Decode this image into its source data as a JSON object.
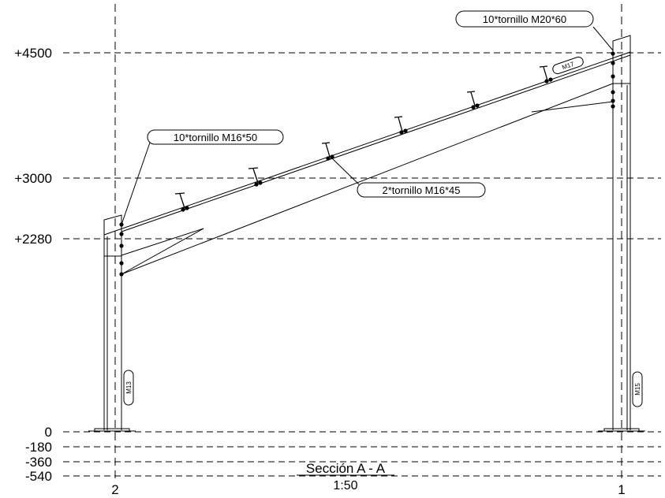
{
  "levels": [
    {
      "id": "l4500",
      "label": "+4500"
    },
    {
      "id": "l3000",
      "label": "+3000"
    },
    {
      "id": "l2280",
      "label": "+2280"
    },
    {
      "id": "l0",
      "label": "0"
    },
    {
      "id": "lm180",
      "label": "-180"
    },
    {
      "id": "lm360",
      "label": "-360"
    },
    {
      "id": "lm540",
      "label": "-540"
    }
  ],
  "gridlines": {
    "left": "2",
    "right": "1"
  },
  "callouts": {
    "top_right": "10*tornillo M20*60",
    "left": "10*tornillo M16*50",
    "middle": "2*tornillo M16*45"
  },
  "member_tags": {
    "rafter": "M17",
    "left_column": "M13",
    "right_column": "M15"
  },
  "section": {
    "title": "Sección A - A",
    "scale": "1:50"
  }
}
